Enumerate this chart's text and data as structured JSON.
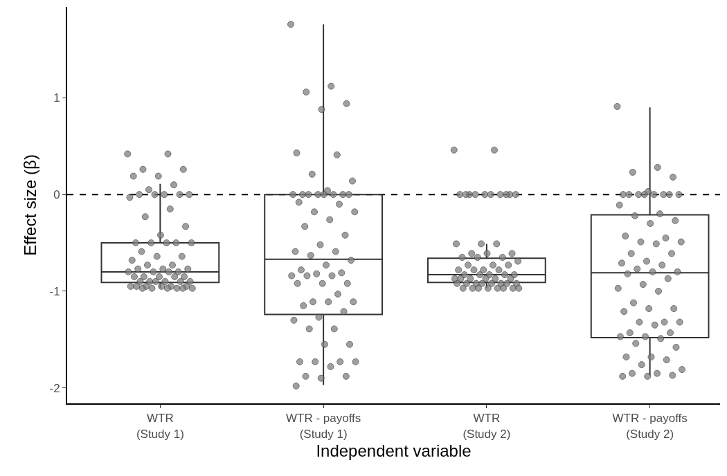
{
  "chart_data": {
    "type": "box",
    "xlabel": "Independent variable",
    "ylabel": "Effect size (β)",
    "categories": [
      "WTR\n(Study 1)",
      "WTR - payoffs\n(Study 1)",
      "WTR\n(Study 2)",
      "WTR - payoffs\n(Study 2)"
    ],
    "boxes": [
      {
        "low": -0.97,
        "q1": -0.91,
        "median": -0.8,
        "q3": -0.5,
        "high": 0.11
      },
      {
        "low": -1.97,
        "q1": -1.24,
        "median": -0.67,
        "q3": 0,
        "high": 1.76
      },
      {
        "low": -0.97,
        "q1": -0.91,
        "median": -0.83,
        "q3": -0.66,
        "high": -0.51
      },
      {
        "low": -1.87,
        "q1": -1.48,
        "median": -0.81,
        "q3": -0.21,
        "high": 0.9
      }
    ],
    "color": "#333333",
    "series": [
      {
        "type": "scatter",
        "color": "#808080",
        "x": [
          "WTR\n(Study 1)",
          "WTR\n(Study 1)",
          "WTR\n(Study 1)",
          "WTR\n(Study 1)",
          "WTR\n(Study 1)",
          "WTR\n(Study 1)",
          "WTR\n(Study 1)",
          "WTR\n(Study 1)",
          "WTR\n(Study 1)",
          "WTR\n(Study 1)",
          "WTR\n(Study 1)",
          "WTR\n(Study 1)",
          "WTR\n(Study 1)",
          "WTR\n(Study 1)",
          "WTR\n(Study 1)",
          "WTR\n(Study 1)",
          "WTR\n(Study 1)",
          "WTR\n(Study 1)",
          "WTR\n(Study 1)",
          "WTR\n(Study 1)",
          "WTR\n(Study 1)",
          "WTR\n(Study 1)",
          "WTR\n(Study 1)",
          "WTR\n(Study 1)",
          "WTR\n(Study 1)",
          "WTR\n(Study 1)",
          "WTR\n(Study 1)",
          "WTR\n(Study 1)",
          "WTR\n(Study 1)",
          "WTR\n(Study 1)",
          "WTR\n(Study 1)",
          "WTR\n(Study 1)",
          "WTR\n(Study 1)",
          "WTR\n(Study 1)",
          "WTR\n(Study 1)",
          "WTR\n(Study 1)",
          "WTR\n(Study 1)",
          "WTR\n(Study 1)",
          "WTR\n(Study 1)",
          "WTR\n(Study 1)",
          "WTR\n(Study 1)",
          "WTR\n(Study 1)",
          "WTR\n(Study 1)",
          "WTR\n(Study 1)",
          "WTR\n(Study 1)",
          "WTR\n(Study 1)",
          "WTR\n(Study 1)",
          "WTR\n(Study 1)",
          "WTR\n(Study 1)",
          "WTR\n(Study 1)",
          "WTR\n(Study 1)",
          "WTR\n(Study 1)",
          "WTR\n(Study 1)",
          "WTR\n(Study 1)",
          "WTR\n(Study 1)",
          "WTR\n(Study 1)",
          "WTR\n(Study 1)",
          "WTR\n(Study 1)",
          "WTR\n(Study 1)"
        ],
        "values": [
          0.42,
          0.42,
          0.26,
          0.26,
          0.19,
          0.19,
          0.1,
          0.05,
          0,
          0,
          0,
          0,
          0,
          -0.03,
          -0.15,
          -0.23,
          -0.33,
          -0.42,
          -0.5,
          -0.5,
          -0.5,
          -0.5,
          -0.5,
          -0.59,
          -0.64,
          -0.64,
          -0.68,
          -0.73,
          -0.73,
          -0.77,
          -0.77,
          -0.77,
          -0.8,
          -0.8,
          -0.8,
          -0.8,
          -0.85,
          -0.85,
          -0.85,
          -0.85,
          -0.85,
          -0.9,
          -0.9,
          -0.9,
          -0.9,
          -0.9,
          -0.9,
          -0.95,
          -0.95,
          -0.95,
          -0.95,
          -0.95,
          -0.95,
          -0.97,
          -0.97,
          -0.97,
          -0.97,
          -0.97,
          -0.97
        ]
      },
      {
        "type": "scatter",
        "color": "#808080",
        "x": [
          "WTR - payoffs\n(Study 1)",
          "WTR - payoffs\n(Study 1)",
          "WTR - payoffs\n(Study 1)",
          "WTR - payoffs\n(Study 1)",
          "WTR - payoffs\n(Study 1)",
          "WTR - payoffs\n(Study 1)",
          "WTR - payoffs\n(Study 1)",
          "WTR - payoffs\n(Study 1)",
          "WTR - payoffs\n(Study 1)",
          "WTR - payoffs\n(Study 1)",
          "WTR - payoffs\n(Study 1)",
          "WTR - payoffs\n(Study 1)",
          "WTR - payoffs\n(Study 1)",
          "WTR - payoffs\n(Study 1)",
          "WTR - payoffs\n(Study 1)",
          "WTR - payoffs\n(Study 1)",
          "WTR - payoffs\n(Study 1)",
          "WTR - payoffs\n(Study 1)",
          "WTR - payoffs\n(Study 1)",
          "WTR - payoffs\n(Study 1)",
          "WTR - payoffs\n(Study 1)",
          "WTR - payoffs\n(Study 1)",
          "WTR - payoffs\n(Study 1)",
          "WTR - payoffs\n(Study 1)",
          "WTR - payoffs\n(Study 1)",
          "WTR - payoffs\n(Study 1)",
          "WTR - payoffs\n(Study 1)",
          "WTR - payoffs\n(Study 1)",
          "WTR - payoffs\n(Study 1)",
          "WTR - payoffs\n(Study 1)",
          "WTR - payoffs\n(Study 1)",
          "WTR - payoffs\n(Study 1)",
          "WTR - payoffs\n(Study 1)",
          "WTR - payoffs\n(Study 1)",
          "WTR - payoffs\n(Study 1)",
          "WTR - payoffs\n(Study 1)",
          "WTR - payoffs\n(Study 1)",
          "WTR - payoffs\n(Study 1)",
          "WTR - payoffs\n(Study 1)",
          "WTR - payoffs\n(Study 1)",
          "WTR - payoffs\n(Study 1)",
          "WTR - payoffs\n(Study 1)",
          "WTR - payoffs\n(Study 1)",
          "WTR - payoffs\n(Study 1)",
          "WTR - payoffs\n(Study 1)",
          "WTR - payoffs\n(Study 1)",
          "WTR - payoffs\n(Study 1)",
          "WTR - payoffs\n(Study 1)",
          "WTR - payoffs\n(Study 1)",
          "WTR - payoffs\n(Study 1)",
          "WTR - payoffs\n(Study 1)",
          "WTR - payoffs\n(Study 1)",
          "WTR - payoffs\n(Study 1)",
          "WTR - payoffs\n(Study 1)",
          "WTR - payoffs\n(Study 1)",
          "WTR - payoffs\n(Study 1)",
          "WTR - payoffs\n(Study 1)",
          "WTR - payoffs\n(Study 1)",
          "WTR - payoffs\n(Study 1)",
          "WTR - payoffs\n(Study 1)",
          "WTR - payoffs\n(Study 1)"
        ],
        "values": [
          1.76,
          1.12,
          1.06,
          0.94,
          0.88,
          0.43,
          0.41,
          0.21,
          0.14,
          0.04,
          0,
          0,
          0,
          0,
          0,
          0,
          0,
          0,
          -0.08,
          -0.1,
          -0.18,
          -0.18,
          -0.26,
          -0.33,
          -0.42,
          -0.52,
          -0.59,
          -0.59,
          -0.63,
          -0.68,
          -0.73,
          -0.78,
          -0.81,
          -0.82,
          -0.84,
          -0.84,
          -0.84,
          -0.92,
          -0.92,
          -0.92,
          -1.03,
          -1.11,
          -1.11,
          -1.11,
          -1.15,
          -1.21,
          -1.27,
          -1.3,
          -1.39,
          -1.39,
          -1.55,
          -1.55,
          -1.73,
          -1.73,
          -1.73,
          -1.73,
          -1.78,
          -1.88,
          -1.88,
          -1.9,
          -1.98
        ]
      },
      {
        "type": "scatter",
        "color": "#808080",
        "x": [
          "WTR\n(Study 2)",
          "WTR\n(Study 2)",
          "WTR\n(Study 2)",
          "WTR\n(Study 2)",
          "WTR\n(Study 2)",
          "WTR\n(Study 2)",
          "WTR\n(Study 2)",
          "WTR\n(Study 2)",
          "WTR\n(Study 2)",
          "WTR\n(Study 2)",
          "WTR\n(Study 2)",
          "WTR\n(Study 2)",
          "WTR\n(Study 2)",
          "WTR\n(Study 2)",
          "WTR\n(Study 2)",
          "WTR\n(Study 2)",
          "WTR\n(Study 2)",
          "WTR\n(Study 2)",
          "WTR\n(Study 2)",
          "WTR\n(Study 2)",
          "WTR\n(Study 2)",
          "WTR\n(Study 2)",
          "WTR\n(Study 2)",
          "WTR\n(Study 2)",
          "WTR\n(Study 2)",
          "WTR\n(Study 2)",
          "WTR\n(Study 2)",
          "WTR\n(Study 2)",
          "WTR\n(Study 2)",
          "WTR\n(Study 2)",
          "WTR\n(Study 2)",
          "WTR\n(Study 2)",
          "WTR\n(Study 2)",
          "WTR\n(Study 2)",
          "WTR\n(Study 2)",
          "WTR\n(Study 2)",
          "WTR\n(Study 2)",
          "WTR\n(Study 2)",
          "WTR\n(Study 2)",
          "WTR\n(Study 2)",
          "WTR\n(Study 2)",
          "WTR\n(Study 2)",
          "WTR\n(Study 2)",
          "WTR\n(Study 2)",
          "WTR\n(Study 2)",
          "WTR\n(Study 2)",
          "WTR\n(Study 2)",
          "WTR\n(Study 2)",
          "WTR\n(Study 2)",
          "WTR\n(Study 2)",
          "WTR\n(Study 2)",
          "WTR\n(Study 2)",
          "WTR\n(Study 2)",
          "WTR\n(Study 2)",
          "WTR\n(Study 2)",
          "WTR\n(Study 2)"
        ],
        "values": [
          0.46,
          0.46,
          0,
          0,
          0,
          0,
          0,
          0,
          0,
          0,
          0,
          0,
          -0.51,
          -0.51,
          -0.51,
          -0.61,
          -0.61,
          -0.61,
          -0.65,
          -0.65,
          -0.65,
          -0.69,
          -0.73,
          -0.73,
          -0.73,
          -0.78,
          -0.78,
          -0.78,
          -0.78,
          -0.83,
          -0.83,
          -0.83,
          -0.83,
          -0.83,
          -0.87,
          -0.87,
          -0.87,
          -0.87,
          -0.87,
          -0.87,
          -0.92,
          -0.92,
          -0.92,
          -0.92,
          -0.92,
          -0.92,
          -0.92,
          -0.92,
          -0.97,
          -0.97,
          -0.97,
          -0.97,
          -0.97,
          -0.97,
          -0.97,
          -0.97
        ]
      },
      {
        "type": "scatter",
        "color": "#808080",
        "x": [
          "WTR - payoffs\n(Study 2)",
          "WTR - payoffs\n(Study 2)",
          "WTR - payoffs\n(Study 2)",
          "WTR - payoffs\n(Study 2)",
          "WTR - payoffs\n(Study 2)",
          "WTR - payoffs\n(Study 2)",
          "WTR - payoffs\n(Study 2)",
          "WTR - payoffs\n(Study 2)",
          "WTR - payoffs\n(Study 2)",
          "WTR - payoffs\n(Study 2)",
          "WTR - payoffs\n(Study 2)",
          "WTR - payoffs\n(Study 2)",
          "WTR - payoffs\n(Study 2)",
          "WTR - payoffs\n(Study 2)",
          "WTR - payoffs\n(Study 2)",
          "WTR - payoffs\n(Study 2)",
          "WTR - payoffs\n(Study 2)",
          "WTR - payoffs\n(Study 2)",
          "WTR - payoffs\n(Study 2)",
          "WTR - payoffs\n(Study 2)",
          "WTR - payoffs\n(Study 2)",
          "WTR - payoffs\n(Study 2)",
          "WTR - payoffs\n(Study 2)",
          "WTR - payoffs\n(Study 2)",
          "WTR - payoffs\n(Study 2)",
          "WTR - payoffs\n(Study 2)",
          "WTR - payoffs\n(Study 2)",
          "WTR - payoffs\n(Study 2)",
          "WTR - payoffs\n(Study 2)",
          "WTR - payoffs\n(Study 2)",
          "WTR - payoffs\n(Study 2)",
          "WTR - payoffs\n(Study 2)",
          "WTR - payoffs\n(Study 2)",
          "WTR - payoffs\n(Study 2)",
          "WTR - payoffs\n(Study 2)",
          "WTR - payoffs\n(Study 2)",
          "WTR - payoffs\n(Study 2)",
          "WTR - payoffs\n(Study 2)",
          "WTR - payoffs\n(Study 2)",
          "WTR - payoffs\n(Study 2)",
          "WTR - payoffs\n(Study 2)",
          "WTR - payoffs\n(Study 2)",
          "WTR - payoffs\n(Study 2)",
          "WTR - payoffs\n(Study 2)",
          "WTR - payoffs\n(Study 2)",
          "WTR - payoffs\n(Study 2)",
          "WTR - payoffs\n(Study 2)",
          "WTR - payoffs\n(Study 2)",
          "WTR - payoffs\n(Study 2)",
          "WTR - payoffs\n(Study 2)",
          "WTR - payoffs\n(Study 2)",
          "WTR - payoffs\n(Study 2)",
          "WTR - payoffs\n(Study 2)",
          "WTR - payoffs\n(Study 2)",
          "WTR - payoffs\n(Study 2)",
          "WTR - payoffs\n(Study 2)",
          "WTR - payoffs\n(Study 2)",
          "WTR - payoffs\n(Study 2)",
          "WTR - payoffs\n(Study 2)",
          "WTR - payoffs\n(Study 2)",
          "WTR - payoffs\n(Study 2)"
        ],
        "values": [
          0.91,
          0.28,
          0.23,
          0.18,
          0.03,
          0,
          0,
          0,
          0,
          0,
          0,
          0,
          0,
          -0.11,
          -0.2,
          -0.22,
          -0.27,
          -0.3,
          -0.43,
          -0.45,
          -0.49,
          -0.49,
          -0.51,
          -0.61,
          -0.61,
          -0.69,
          -0.71,
          -0.73,
          -0.77,
          -0.8,
          -0.8,
          -0.82,
          -0.87,
          -0.93,
          -0.97,
          -1.0,
          -1.12,
          -1.18,
          -1.18,
          -1.21,
          -1.32,
          -1.32,
          -1.32,
          -1.35,
          -1.43,
          -1.43,
          -1.47,
          -1.47,
          -1.49,
          -1.54,
          -1.58,
          -1.68,
          -1.68,
          -1.71,
          -1.76,
          -1.81,
          -1.85,
          -1.85,
          -1.87,
          -1.88,
          -1.88
        ]
      }
    ],
    "ref_lines": [
      {
        "axis": "y",
        "value": 0,
        "color": "#000000",
        "line_style": "dashed"
      }
    ],
    "ylim": [
      -2.16,
      1.94
    ],
    "yticks": [
      -2,
      -1,
      0,
      1
    ],
    "grid": false,
    "marker": "circle"
  }
}
